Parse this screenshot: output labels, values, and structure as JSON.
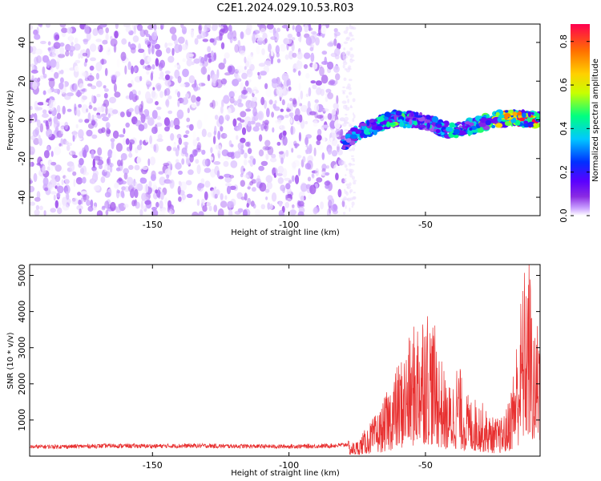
{
  "figure": {
    "title": "C2E1.2024.029.10.53.R03"
  },
  "chart_data": [
    {
      "type": "heatmap",
      "xlabel": "Height of straight line (km)",
      "ylabel": "Frequency (Hz)",
      "xlim": [
        -195,
        -8
      ],
      "ylim": [
        -49.5,
        49.5
      ],
      "x_ticks": [
        -150,
        -100,
        -50
      ],
      "y_ticks": [
        -40,
        -20,
        0,
        20,
        40
      ],
      "grid": false,
      "colorbar": {
        "label": "Normalized spectral amplitude",
        "range": [
          0,
          0.88
        ],
        "ticks": [
          0.0,
          0.2,
          0.4,
          0.6,
          0.8
        ],
        "colormap": [
          "#ffffff",
          "#c9a0ff",
          "#8a2be2",
          "#5a00ff",
          "#0030ff",
          "#00c8ff",
          "#00ff80",
          "#c8ff00",
          "#ffd000",
          "#ff7000",
          "#ff0050"
        ]
      },
      "noise_region": {
        "x_from": -195,
        "x_to": -80,
        "freq_from": -49.5,
        "freq_to": 49.5,
        "amplitude_range": [
          0.0,
          0.15
        ]
      },
      "signal_track": {
        "x": [
          -80,
          -75,
          -70,
          -65,
          -60,
          -55,
          -50,
          -45,
          -40,
          -35,
          -30,
          -25,
          -20,
          -15,
          -10,
          -8
        ],
        "freq": [
          -12,
          -7,
          -4,
          -1,
          1,
          0,
          -1,
          -4,
          -6,
          -4,
          -2,
          0,
          1,
          1,
          0,
          1
        ],
        "amplitude": [
          0.35,
          0.4,
          0.45,
          0.45,
          0.5,
          0.45,
          0.45,
          0.4,
          0.45,
          0.45,
          0.5,
          0.55,
          0.7,
          0.8,
          0.85,
          0.6
        ]
      }
    },
    {
      "type": "line",
      "xlabel": "Height of straight line (km)",
      "ylabel": "SNR (10 * v/v)",
      "xlim": [
        -195,
        -8
      ],
      "ylim": [
        0,
        5300
      ],
      "x_ticks": [
        -150,
        -100,
        -50
      ],
      "y_ticks": [
        1000,
        2000,
        3000,
        4000,
        5000
      ],
      "grid": false,
      "color": "#e83030",
      "series": [
        {
          "x": [
            -195,
            -180,
            -165,
            -150,
            -135,
            -120,
            -105,
            -90,
            -85,
            -80,
            -75,
            -72,
            -70,
            -66,
            -62,
            -58,
            -55,
            -52,
            -50,
            -47,
            -44,
            -42,
            -40,
            -38,
            -36,
            -33,
            -30,
            -27,
            -25,
            -22,
            -20,
            -18,
            -16,
            -14,
            -12,
            -10,
            -8
          ],
          "y": [
            250,
            260,
            280,
            270,
            280,
            270,
            260,
            270,
            280,
            300,
            400,
            700,
            900,
            1300,
            2100,
            2700,
            3200,
            3900,
            4100,
            3500,
            2500,
            1800,
            2000,
            2600,
            1700,
            1500,
            1500,
            1100,
            1000,
            1000,
            1300,
            2200,
            3500,
            4800,
            5300,
            3000,
            4500
          ]
        }
      ]
    }
  ]
}
